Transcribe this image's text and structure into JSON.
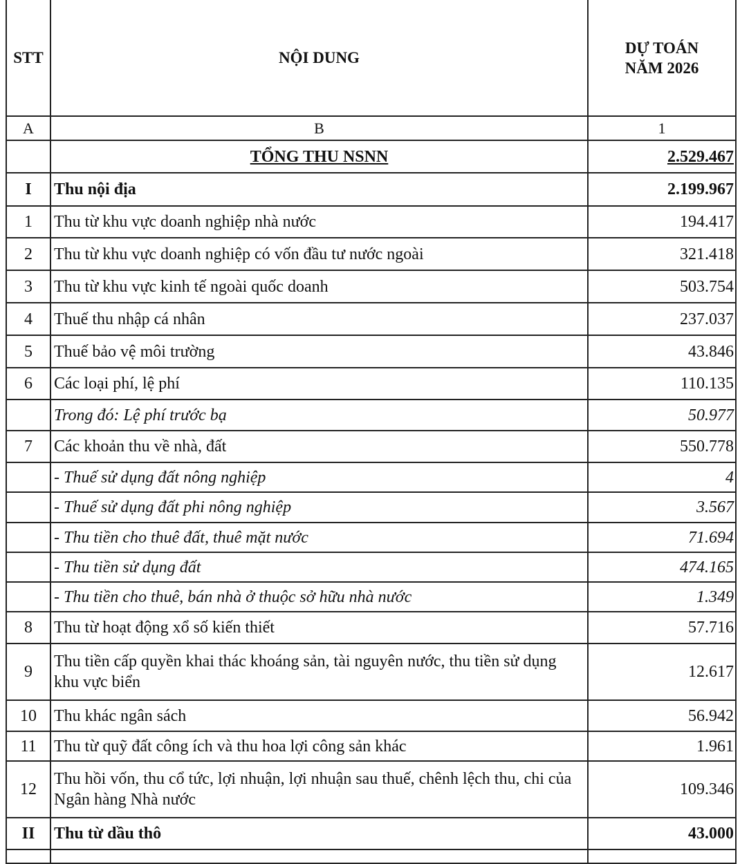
{
  "header": {
    "stt": "STT",
    "content": "NỘI DUNG",
    "value_line1": "DỰ TOÁN",
    "value_line2": "NĂM 2026"
  },
  "index_row": {
    "stt": "A",
    "content": "B",
    "value": "1"
  },
  "rows": [
    {
      "stt": "",
      "content": "TỔNG THU NSNN",
      "value": "2.529.467",
      "style": "total"
    },
    {
      "stt": "I",
      "content": "Thu nội địa",
      "value": "2.199.967",
      "style": "bold"
    },
    {
      "stt": "1",
      "content": "Thu từ khu vực doanh nghiệp nhà nước",
      "value": "194.417",
      "style": "normal"
    },
    {
      "stt": "2",
      "content": "Thu từ khu vực doanh nghiệp có vốn đầu tư nước ngoài",
      "value": "321.418",
      "style": "normal"
    },
    {
      "stt": "3",
      "content": "Thu từ khu vực kinh tế ngoài quốc doanh",
      "value": "503.754",
      "style": "normal"
    },
    {
      "stt": "4",
      "content": "Thuế thu nhập cá nhân",
      "value": "237.037",
      "style": "normal"
    },
    {
      "stt": "5",
      "content": "Thuế bảo vệ môi trường",
      "value": "43.846",
      "style": "normal"
    },
    {
      "stt": "6",
      "content": "Các loại phí, lệ phí",
      "value": "110.135",
      "style": "normal"
    },
    {
      "stt": "",
      "content": "Trong đó: Lệ phí trước bạ",
      "value": "50.977",
      "style": "italic"
    },
    {
      "stt": "7",
      "content": "Các khoản thu về nhà, đất",
      "value": "550.778",
      "style": "normal"
    },
    {
      "stt": "",
      "content": "- Thuế sử dụng đất nông nghiệp",
      "value": "4",
      "style": "italic"
    },
    {
      "stt": "",
      "content": "- Thuế sử dụng đất phi nông nghiệp",
      "value": "3.567",
      "style": "italic"
    },
    {
      "stt": "",
      "content": "- Thu tiền cho thuê đất, thuê mặt nước",
      "value": "71.694",
      "style": "italic"
    },
    {
      "stt": "",
      "content": "- Thu tiền sử dụng đất",
      "value": "474.165",
      "style": "italic"
    },
    {
      "stt": "",
      "content": "- Thu tiền cho thuê, bán nhà ở thuộc sở hữu nhà nước",
      "value": "1.349",
      "style": "italic"
    },
    {
      "stt": "8",
      "content": "Thu từ hoạt động xổ số kiến thiết",
      "value": "57.716",
      "style": "normal"
    },
    {
      "stt": "9",
      "content": "Thu tiền cấp quyền khai thác khoáng sản, tài nguyên nước, thu tiền sử dụng khu vực biển",
      "value": "12.617",
      "style": "normal"
    },
    {
      "stt": "10",
      "content": "Thu khác ngân sách",
      "value": "56.942",
      "style": "normal"
    },
    {
      "stt": "11",
      "content": "Thu từ quỹ đất công ích và thu hoa lợi công sản khác",
      "value": "1.961",
      "style": "normal"
    },
    {
      "stt": "12",
      "content": "Thu hồi vốn, thu cổ tức, lợi nhuận, lợi nhuận sau thuế, chênh lệch thu, chi của Ngân hàng Nhà nước",
      "value": "109.346",
      "style": "normal"
    },
    {
      "stt": "II",
      "content": "Thu từ dầu thô",
      "value": "43.000",
      "style": "bold"
    }
  ]
}
